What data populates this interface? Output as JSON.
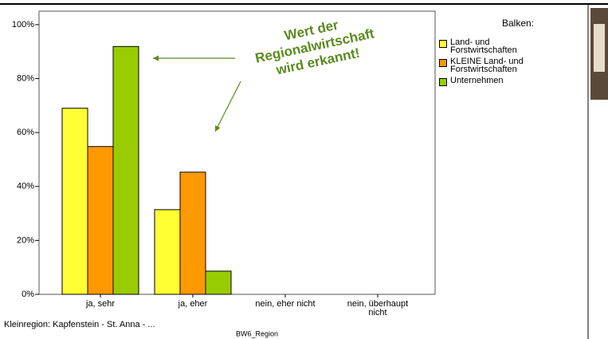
{
  "chart_data": {
    "type": "bar",
    "categories": [
      "ja, sehr",
      "ja, eher",
      "nein, eher nicht",
      "nein, überhaupt nicht"
    ],
    "series": [
      {
        "name": "Land- und Forstwirtschaften",
        "color": "#ffff33",
        "values": [
          69,
          31.4,
          0,
          0
        ]
      },
      {
        "name": "KLEINE Land- und Forstwirtschaften",
        "color": "#ff9900",
        "values": [
          54.8,
          45.3,
          0,
          0
        ]
      },
      {
        "name": "Unternehmen",
        "color": "#99cc00",
        "values": [
          91.9,
          8.6,
          0,
          0
        ]
      }
    ],
    "ylim": [
      0,
      105
    ],
    "yticks": [
      {
        "value": 0,
        "label": "0%"
      },
      {
        "value": 20,
        "label": "20%"
      },
      {
        "value": 40,
        "label": "40%"
      },
      {
        "value": 60,
        "label": "60%"
      },
      {
        "value": 80,
        "label": "80%"
      },
      {
        "value": 100,
        "label": "100%"
      }
    ],
    "legend_title": "Balken:",
    "annotation": [
      "Wert der",
      "Regionalwirtschaft",
      "wird erkannt!"
    ],
    "xlabel": "BW6_Region",
    "footnote": "Kleinregion: Kapfenstein - St. Anna - ..."
  }
}
